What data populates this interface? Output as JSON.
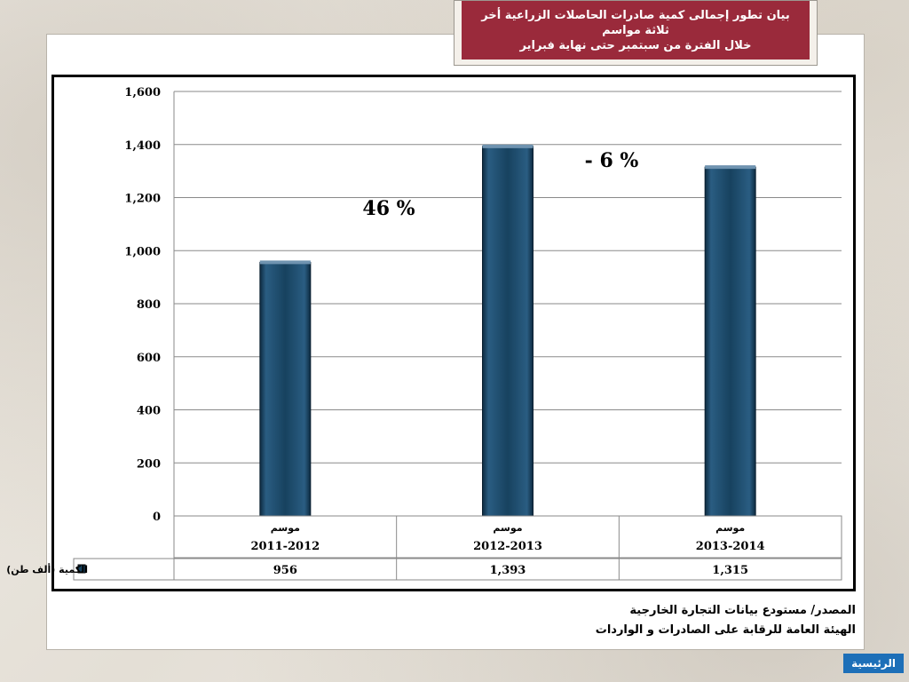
{
  "title": {
    "lines": [
      "بيان تطور إجمالى كمية صادرات الحاصلات الزراعية أخر",
      "ثلاثة مواسم",
      "خلال الفترة من سبتمبر حتى نهاية فبراير"
    ]
  },
  "chart_data": {
    "type": "bar",
    "title": "",
    "xlabel": "",
    "ylabel": "",
    "ylim": [
      0,
      1600
    ],
    "yticks": [
      "1,600",
      "1,400",
      "1,200",
      "1,000",
      "800",
      "600",
      "400",
      "200",
      "0"
    ],
    "category_prefix": "موسم",
    "categories": [
      "2011-2012",
      "2012-2013",
      "2013-2014"
    ],
    "series": [
      {
        "name": "الكمية (ألف طن)",
        "values": [
          956,
          1393,
          1315
        ],
        "value_labels": [
          "956",
          "1,393",
          "1,315"
        ],
        "color": "#17425f"
      }
    ],
    "annotations": [
      "46 %",
      "- 6 %"
    ],
    "grid": true,
    "data_table": true
  },
  "source": {
    "line1": "المصدر/ مستودع بيانات التجارة الخارجية",
    "line2": "الهيئة العامة للرقابة على الصادرات و الواردات"
  },
  "nav": {
    "home_label": "الرئيسية"
  }
}
